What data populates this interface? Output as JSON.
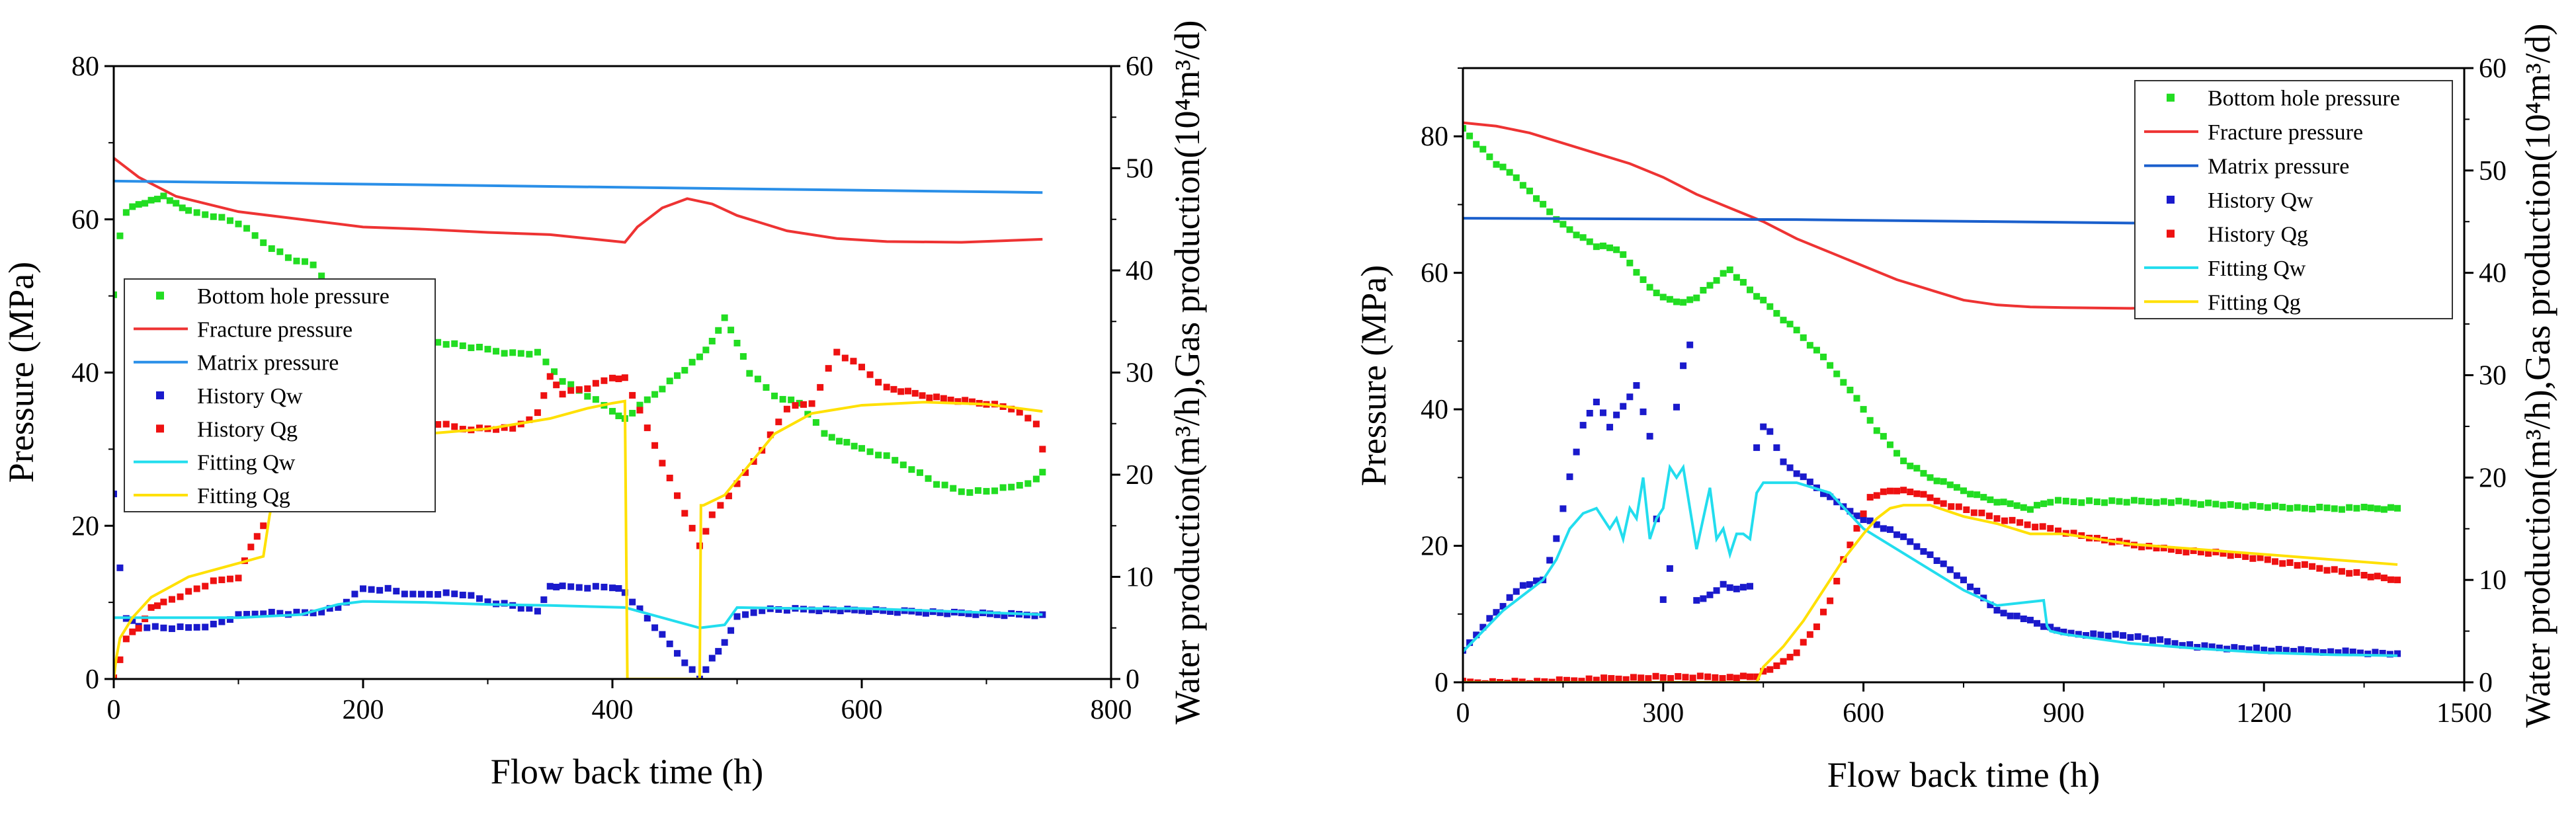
{
  "chart_data": [
    {
      "type": "line",
      "xlabel": "Flow back time (h)",
      "ylabel": "Pressure (MPa)",
      "y2label": "Water production(m³/h),Gas production(10⁴m³/d)",
      "xlim": [
        0,
        800
      ],
      "ylim": [
        0,
        80
      ],
      "y2lim": [
        0,
        60
      ],
      "xticks": [
        "0",
        "200",
        "400",
        "600",
        "800"
      ],
      "yticks": [
        "0",
        "20",
        "40",
        "60",
        "80"
      ],
      "y2ticks": [
        "0",
        "10",
        "20",
        "30",
        "40",
        "50",
        "60"
      ],
      "legend": "left-middle",
      "legend_entries": [
        "Bottom hole pressure",
        "Fracture pressure",
        "Matrix pressure",
        "History Qw",
        "History Qg",
        "Fitting Qw",
        "Fitting Qg"
      ],
      "series": [
        {
          "name": "Bottom hole pressure",
          "axis": "left",
          "style": "marker",
          "color": "#22dd22",
          "x": [
            0,
            5,
            10,
            20,
            30,
            40,
            50,
            60,
            80,
            100,
            120,
            140,
            160,
            180,
            200,
            220,
            240,
            260,
            280,
            300,
            320,
            340,
            360,
            380,
            400,
            410,
            470,
            480,
            490,
            500,
            510,
            530,
            550,
            570,
            600,
            620,
            640,
            660,
            680,
            700,
            720,
            740,
            745
          ],
          "y": [
            50,
            58,
            61,
            62,
            62.5,
            63,
            62,
            61,
            60.5,
            59.5,
            57,
            55,
            54,
            50,
            48,
            47,
            46,
            44,
            43.5,
            43,
            42.5,
            42.5,
            39,
            37,
            35,
            34,
            42,
            44,
            47,
            44,
            40,
            37,
            36,
            32,
            30,
            29,
            27.5,
            25.5,
            24.5,
            24.5,
            25,
            26,
            27
          ]
        },
        {
          "name": "Fracture pressure",
          "axis": "left",
          "style": "line",
          "color": "#ee3333",
          "x": [
            0,
            20,
            50,
            100,
            150,
            200,
            250,
            300,
            350,
            380,
            410,
            420,
            440,
            460,
            480,
            500,
            540,
            580,
            620,
            680,
            745
          ],
          "y": [
            68,
            65.5,
            63,
            61,
            60,
            59,
            58.7,
            58.3,
            58,
            57.5,
            57,
            59,
            61.5,
            62.7,
            62,
            60.5,
            58.5,
            57.5,
            57.1,
            57,
            57.4
          ]
        },
        {
          "name": "Matrix pressure",
          "axis": "left",
          "style": "line",
          "color": "#2a8fe8",
          "x": [
            0,
            745
          ],
          "y": [
            65,
            63.5
          ]
        },
        {
          "name": "History Qw",
          "axis": "right",
          "style": "marker",
          "color": "#1a1acc",
          "x": [
            0,
            5,
            10,
            20,
            40,
            60,
            80,
            100,
            120,
            140,
            160,
            180,
            200,
            220,
            240,
            260,
            280,
            300,
            320,
            340,
            350,
            360,
            380,
            400,
            410,
            470,
            480,
            490,
            500,
            520,
            540,
            560,
            600,
            640,
            680,
            720,
            745
          ],
          "y": [
            18,
            11,
            6,
            5.2,
            5,
            5,
            5.3,
            6.2,
            6.5,
            6.4,
            6.5,
            7,
            8.8,
            8.8,
            8.2,
            8.4,
            8.3,
            7.6,
            7.2,
            6.6,
            9,
            9,
            9,
            9,
            8.5,
            0,
            2,
            3.5,
            6,
            6.8,
            6.8,
            6.8,
            6.7,
            6.6,
            6.4,
            6.3,
            6.3
          ]
        },
        {
          "name": "History Qg",
          "axis": "right",
          "style": "marker",
          "color": "#ee1111",
          "x": [
            0,
            5,
            10,
            20,
            30,
            40,
            60,
            80,
            100,
            110,
            115,
            120,
            130,
            160,
            200,
            240,
            260,
            280,
            300,
            320,
            340,
            350,
            360,
            380,
            400,
            410,
            470,
            480,
            500,
            520,
            540,
            560,
            580,
            600,
            620,
            660,
            700,
            720,
            740,
            745
          ],
          "y": [
            0,
            2,
            4,
            5,
            7,
            7.5,
            8.5,
            9.5,
            10,
            13,
            14,
            15,
            22,
            20,
            20.5,
            21.5,
            25,
            24.5,
            24.5,
            24.5,
            26,
            29.5,
            28,
            28.5,
            29.5,
            29.5,
            13,
            16,
            19,
            22.5,
            26.5,
            27,
            32,
            30.5,
            28.5,
            27.5,
            27,
            26.5,
            25,
            22.5
          ]
        },
        {
          "name": "Fitting Qw",
          "axis": "right",
          "style": "line",
          "color": "#22ddee",
          "x": [
            0,
            10,
            100,
            150,
            180,
            200,
            250,
            300,
            350,
            410,
            470,
            490,
            500,
            550,
            600,
            700,
            745
          ],
          "y": [
            6,
            6,
            6,
            6.3,
            7.3,
            7.6,
            7.5,
            7.3,
            7.2,
            7,
            5,
            5.3,
            7,
            6.9,
            6.9,
            6.5,
            6.3
          ]
        },
        {
          "name": "Fitting Qg",
          "axis": "right",
          "style": "line",
          "color": "#ffe000",
          "x": [
            0,
            2,
            5,
            15,
            30,
            60,
            90,
            120,
            125,
            130,
            150,
            200,
            250,
            300,
            350,
            380,
            400,
            410,
            412,
            414,
            470,
            471,
            473,
            490,
            510,
            530,
            560,
            600,
            650,
            700,
            745
          ],
          "y": [
            0,
            2,
            4,
            6,
            8,
            10,
            11,
            12,
            16,
            19,
            21.5,
            23,
            24,
            24.5,
            25.5,
            26.5,
            27,
            27.2,
            0,
            0,
            0,
            17,
            17,
            18,
            21,
            24,
            26,
            26.8,
            27.1,
            26.9,
            26.2
          ]
        }
      ]
    },
    {
      "type": "line",
      "xlabel": "Flow back time (h)",
      "ylabel": "Pressure (MPa)",
      "y2label": "Water production(m³/h),Gas production(10⁴m³/d)",
      "xlim": [
        0,
        1500
      ],
      "ylim": [
        0,
        90
      ],
      "y2lim": [
        0,
        60
      ],
      "xticks": [
        "0",
        "300",
        "600",
        "900",
        "1200",
        "1500"
      ],
      "yticks": [
        "0",
        "20",
        "40",
        "60",
        "80"
      ],
      "y2ticks": [
        "0",
        "10",
        "20",
        "30",
        "40",
        "50",
        "60"
      ],
      "legend": "top-right",
      "legend_entries": [
        "Bottom hole pressure",
        "Fracture pressure",
        "Matrix pressure",
        "History Qw",
        "History Qg",
        "Fitting Qw",
        "Fitting Qg"
      ],
      "series": [
        {
          "name": "Bottom hole pressure",
          "axis": "left",
          "style": "marker",
          "color": "#22dd22",
          "x": [
            0,
            20,
            50,
            80,
            100,
            120,
            150,
            180,
            200,
            230,
            250,
            270,
            290,
            310,
            330,
            350,
            380,
            400,
            430,
            460,
            500,
            540,
            580,
            620,
            660,
            700,
            740,
            780,
            820,
            850,
            880,
            950,
            1050,
            1150,
            1250,
            1350,
            1400
          ],
          "y": [
            81,
            79,
            76,
            74,
            72,
            70,
            67,
            65,
            64,
            63.5,
            61.5,
            59,
            57,
            56,
            55.5,
            56.5,
            59,
            60.5,
            57.5,
            55,
            51.5,
            47.5,
            43,
            37,
            32.5,
            30,
            28.5,
            27,
            26,
            25.5,
            26.5,
            26.5,
            26.5,
            26,
            25.5,
            25.5,
            25.5
          ]
        },
        {
          "name": "Fracture pressure",
          "axis": "left",
          "style": "line",
          "color": "#ee3333",
          "x": [
            0,
            50,
            100,
            150,
            200,
            250,
            300,
            350,
            400,
            450,
            500,
            550,
            600,
            650,
            700,
            750,
            800,
            850,
            900,
            1000,
            1050
          ],
          "y": [
            82,
            81.5,
            80.5,
            79,
            77.5,
            76,
            74,
            71.5,
            69.5,
            67.5,
            65,
            63,
            61,
            59,
            57.5,
            56,
            55.3,
            55,
            54.9,
            54.8,
            54.9
          ]
        },
        {
          "name": "Matrix pressure",
          "axis": "left",
          "style": "line",
          "color": "#1a5fcc",
          "x": [
            0,
            500,
            1000,
            1050
          ],
          "y": [
            68,
            67.8,
            67.3,
            67.3
          ]
        },
        {
          "name": "History Qw",
          "axis": "right",
          "style": "marker",
          "color": "#1a1acc",
          "x": [
            0,
            30,
            60,
            90,
            120,
            140,
            160,
            180,
            200,
            220,
            240,
            260,
            280,
            300,
            310,
            320,
            330,
            340,
            350,
            370,
            390,
            410,
            430,
            440,
            450,
            460,
            480,
            520,
            560,
            600,
            650,
            700,
            750,
            800,
            850,
            900,
            1000,
            1100,
            1200,
            1300,
            1400
          ],
          "y": [
            3,
            5.5,
            7.5,
            9.5,
            10,
            14,
            20,
            25,
            27.5,
            25,
            27,
            29,
            24,
            8,
            11,
            27,
            31,
            33,
            8,
            8.5,
            9.5,
            9,
            9.5,
            23,
            25,
            24.5,
            21.5,
            19.5,
            17.5,
            16,
            14.5,
            12.5,
            10,
            7,
            6,
            4.8,
            4.5,
            3.5,
            3.2,
            3,
            2.8
          ]
        },
        {
          "name": "History Qg",
          "axis": "right",
          "style": "marker",
          "color": "#ee1111",
          "x": [
            0,
            100,
            200,
            300,
            400,
            440,
            450,
            470,
            500,
            530,
            550,
            570,
            590,
            610,
            630,
            650,
            680,
            720,
            800,
            880,
            950,
            1050,
            1150,
            1250,
            1350,
            1400
          ],
          "y": [
            0,
            0,
            0.3,
            0.5,
            0.5,
            0.5,
            1,
            1.5,
            3,
            5.5,
            8,
            12,
            15,
            18,
            18.5,
            18.8,
            18.5,
            17.5,
            16,
            15,
            14,
            13,
            12.5,
            11.5,
            10.5,
            10
          ]
        },
        {
          "name": "Fitting Qw",
          "axis": "right",
          "style": "line",
          "color": "#22ddee",
          "x": [
            0,
            30,
            60,
            90,
            120,
            140,
            160,
            180,
            200,
            220,
            230,
            240,
            250,
            260,
            270,
            280,
            290,
            300,
            310,
            320,
            330,
            340,
            350,
            370,
            380,
            390,
            400,
            410,
            420,
            430,
            440,
            450,
            500,
            550,
            600,
            650,
            700,
            750,
            800,
            870,
            875,
            880,
            900,
            1000,
            1100,
            1200,
            1300,
            1400
          ],
          "y": [
            3,
            5,
            7,
            8.5,
            10,
            12,
            15,
            16.5,
            17,
            15,
            16,
            14,
            17,
            16,
            20,
            14,
            16,
            17,
            21,
            20,
            21,
            17,
            13,
            19,
            14,
            15,
            12.5,
            14.5,
            14.5,
            14,
            18.5,
            19.5,
            19.5,
            18.5,
            15,
            13,
            11,
            9,
            7.5,
            8,
            5.5,
            5,
            4.7,
            3.8,
            3.3,
            2.9,
            2.7,
            2.6
          ]
        },
        {
          "name": "Fitting Qg",
          "axis": "right",
          "style": "line",
          "color": "#ffe000",
          "x": [
            0,
            440,
            450,
            480,
            510,
            540,
            570,
            600,
            620,
            640,
            660,
            680,
            700,
            750,
            800,
            850,
            900,
            950,
            1000,
            1100,
            1200,
            1300,
            1400
          ],
          "y": [
            0,
            0,
            1.5,
            3.5,
            6,
            9,
            12,
            14.5,
            16,
            17,
            17.3,
            17.3,
            17.3,
            16.2,
            15.5,
            14.5,
            14.5,
            14,
            13.5,
            13,
            12.5,
            12,
            11.5
          ]
        }
      ]
    }
  ]
}
